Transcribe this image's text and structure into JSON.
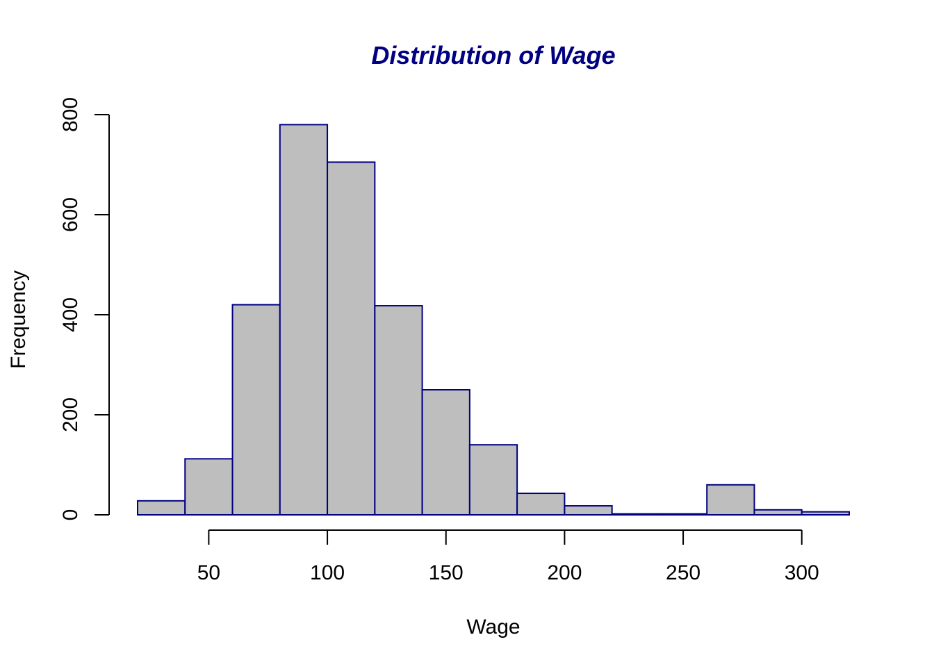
{
  "chart_data": {
    "type": "bar",
    "title": "Distribution of Wage",
    "xlabel": "Wage",
    "ylabel": "Frequency",
    "bin_edges": [
      20,
      40,
      60,
      80,
      100,
      120,
      140,
      160,
      180,
      200,
      220,
      240,
      260,
      280,
      300,
      320
    ],
    "values": [
      28,
      112,
      420,
      780,
      705,
      418,
      250,
      140,
      43,
      18,
      2,
      2,
      60,
      10,
      6
    ],
    "xlim": [
      20,
      320
    ],
    "ylim": [
      0,
      800
    ],
    "x_ticks": [
      50,
      100,
      150,
      200,
      250,
      300
    ],
    "y_ticks": [
      0,
      200,
      400,
      600,
      800
    ],
    "grid": false,
    "colors": {
      "bar_fill": "#bebebe",
      "bar_border": "#000080",
      "title": "#000080",
      "axis": "#000000"
    }
  }
}
